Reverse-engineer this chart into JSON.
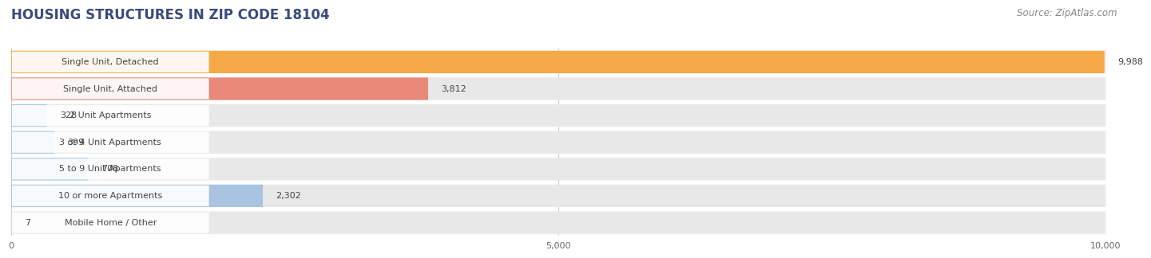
{
  "title": "HOUSING STRUCTURES IN ZIP CODE 18104",
  "source": "Source: ZipAtlas.com",
  "categories": [
    "Single Unit, Detached",
    "Single Unit, Attached",
    "2 Unit Apartments",
    "3 or 4 Unit Apartments",
    "5 to 9 Unit Apartments",
    "10 or more Apartments",
    "Mobile Home / Other"
  ],
  "values": [
    9988,
    3812,
    328,
    399,
    708,
    2302,
    7
  ],
  "bar_colors": [
    "#F5A947",
    "#E8897A",
    "#A8C4E0",
    "#A8C4E0",
    "#A8C4E0",
    "#A8C4E0",
    "#C9A8D4"
  ],
  "row_bg_color": "#E8E8E8",
  "xlim": [
    0,
    10000
  ],
  "xticks": [
    0,
    5000,
    10000
  ],
  "background_color": "#FFFFFF",
  "title_fontsize": 12,
  "source_fontsize": 8.5,
  "bar_height": 0.68,
  "label_fontsize": 8,
  "value_fontsize": 8,
  "title_color": "#3A4A7A",
  "source_color": "#888888",
  "label_color": "#444444",
  "value_color": "#444444",
  "grid_color": "#CCCCCC"
}
